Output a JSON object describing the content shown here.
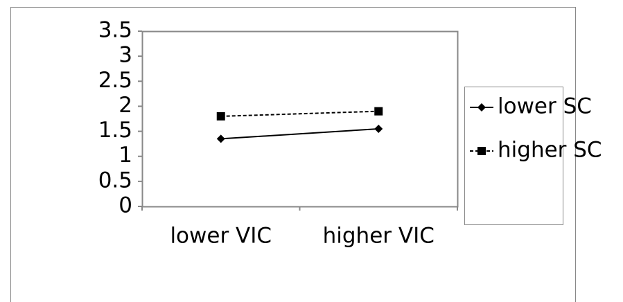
{
  "chart_data": {
    "type": "line",
    "categories": [
      "lower VIC",
      "higher VIC"
    ],
    "series": [
      {
        "name": "lower SC",
        "color": "#000000",
        "marker": "diamond",
        "dash": false,
        "values": [
          1.35,
          1.55
        ]
      },
      {
        "name": "higher SC",
        "color": "#000000",
        "marker": "square",
        "dash": true,
        "values": [
          1.8,
          1.9
        ]
      }
    ],
    "ylim": [
      0,
      3.5
    ],
    "yticks": [
      0,
      0.5,
      1,
      1.5,
      2,
      2.5,
      3,
      3.5
    ],
    "grid": false,
    "legend": "right"
  }
}
